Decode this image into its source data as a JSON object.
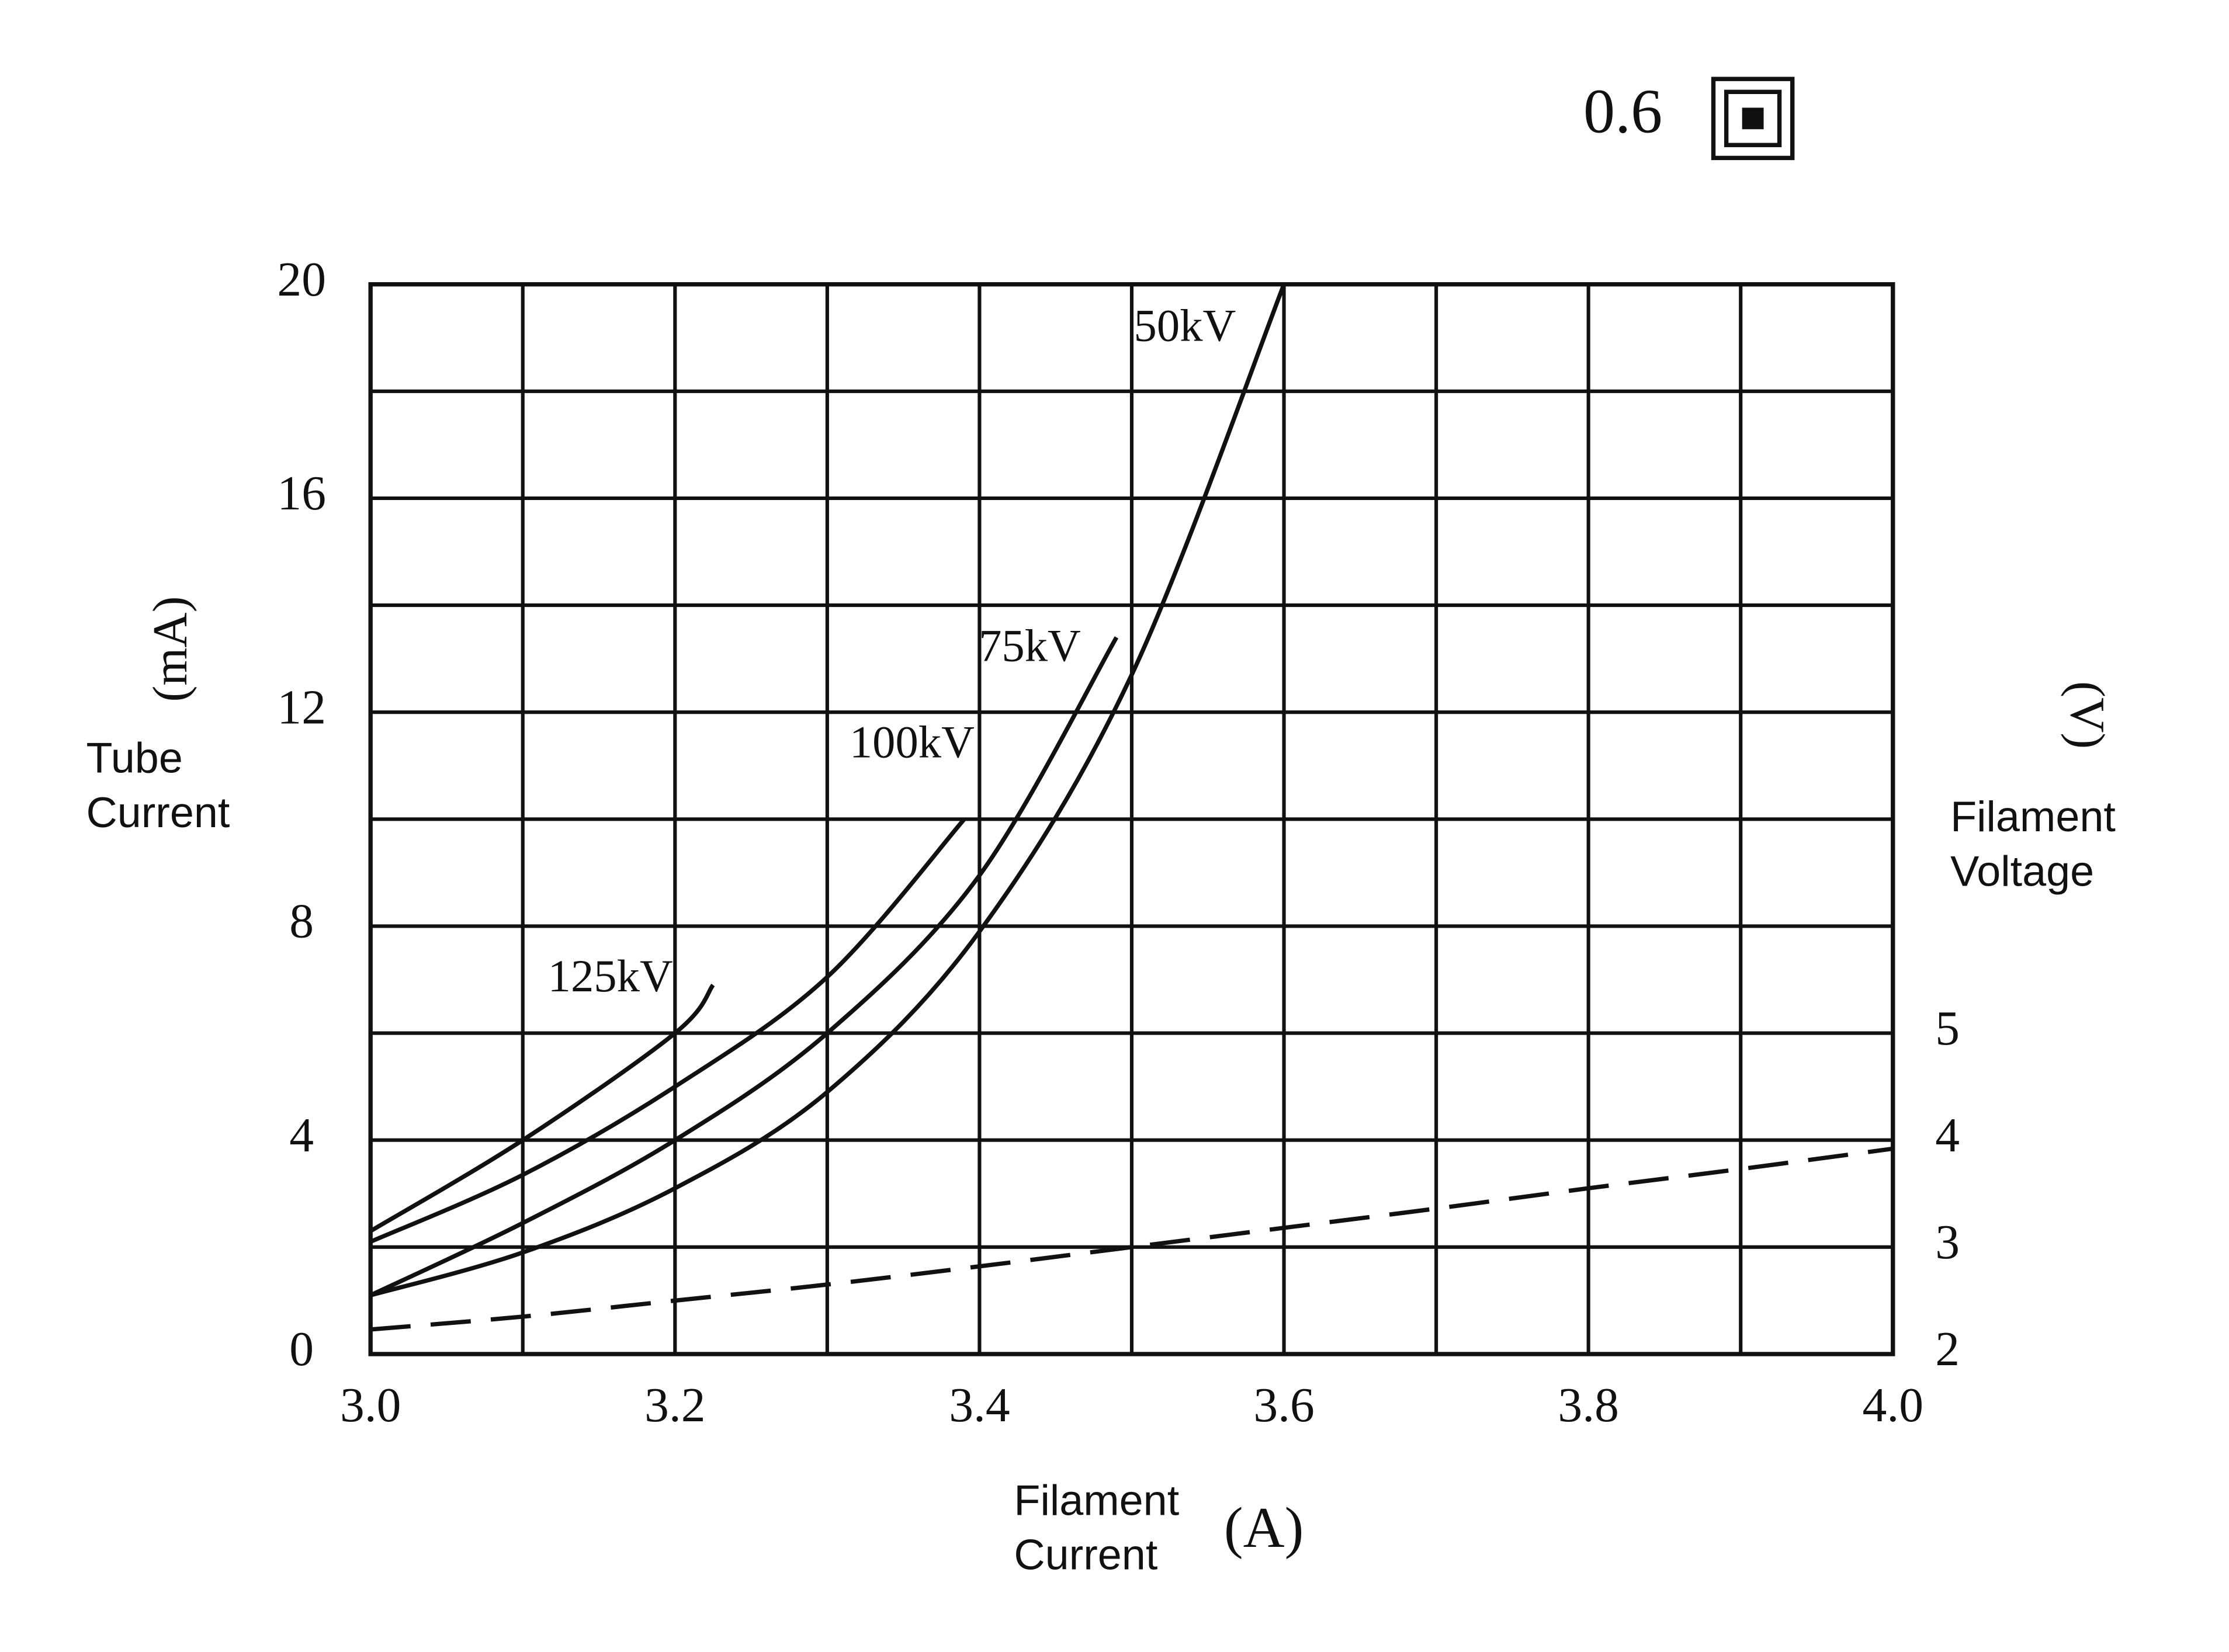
{
  "chart_data": {
    "type": "line",
    "annotation": "0.6",
    "x_label": "Filament Current",
    "x_unit": "(A)",
    "y_label": "Tube Current",
    "y_unit": "(mA)",
    "y2_label": "Filament Voltage",
    "y2_unit": "(V)",
    "xlim": [
      3.0,
      4.0
    ],
    "xticks": [
      {
        "value": 3,
        "label": "3.0"
      },
      3.2,
      3.4,
      3.6,
      3.8,
      {
        "value": 4,
        "label": "4.0"
      }
    ],
    "x_minor_ticks": [
      3.1,
      3.3,
      3.5,
      3.7,
      3.9
    ],
    "ylim": [
      0,
      20
    ],
    "yticks": [
      0,
      4,
      8,
      12,
      16,
      20
    ],
    "y_minor_ticks": [
      2,
      6,
      10,
      14,
      18
    ],
    "y2lim": [
      2,
      12
    ],
    "y2ticks": [
      2,
      3,
      4,
      5
    ],
    "grid": true,
    "series": [
      {
        "name": "125kV",
        "color": "#111111",
        "x": [
          3.0,
          3.1,
          3.2,
          3.225
        ],
        "values": [
          2.3,
          4.0,
          6.0,
          6.9
        ]
      },
      {
        "name": "100kV",
        "color": "#111111",
        "x": [
          3.0,
          3.1,
          3.2,
          3.3,
          3.39
        ],
        "values": [
          2.1,
          3.35,
          5.0,
          7.05,
          10.0
        ]
      },
      {
        "name": "75kV",
        "color": "#111111",
        "x": [
          3.0,
          3.1,
          3.2,
          3.3,
          3.4,
          3.49
        ],
        "values": [
          1.1,
          2.45,
          4.0,
          6.0,
          8.95,
          13.4
        ]
      },
      {
        "name": "50kV",
        "color": "#111111",
        "x": [
          3.0,
          3.1,
          3.2,
          3.3,
          3.4,
          3.5,
          3.6
        ],
        "values": [
          1.1,
          1.9,
          3.1,
          4.9,
          7.9,
          12.7,
          20.0
        ]
      },
      {
        "color": "#111111",
        "axis": "y2",
        "dashed": true,
        "x": [
          3.0,
          3.1,
          3.2,
          3.3,
          3.4,
          3.5,
          3.6,
          3.7,
          3.8,
          3.9,
          4.0
        ],
        "values": [
          2.23,
          2.35,
          2.5,
          2.65,
          2.82,
          3.0,
          3.18,
          3.36,
          3.55,
          3.73,
          3.92
        ]
      }
    ]
  }
}
